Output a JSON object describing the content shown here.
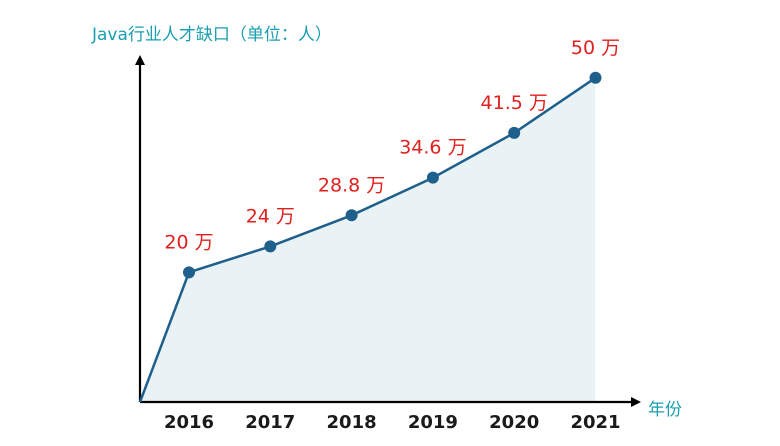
{
  "chart_data": {
    "type": "area",
    "ylabel": "Java行业人才缺口（单位：人）",
    "xlabel": "年份",
    "categories": [
      "2016",
      "2017",
      "2018",
      "2019",
      "2020",
      "2021"
    ],
    "values": [
      20,
      24,
      28.8,
      34.6,
      41.5,
      50
    ],
    "value_unit": "万",
    "data_labels": [
      "20 万",
      "24 万",
      "28.8 万",
      "34.6 万",
      "41.5 万",
      "50 万"
    ],
    "ylim": [
      0,
      62
    ],
    "grid": false,
    "legend": "none",
    "colors": {
      "line": "#1f5f8b",
      "marker": "#1f5f8b",
      "fill": "#e9f3f5",
      "axis": "#000000",
      "axis_title": "#1a9fb0",
      "data_label": "#e0211d",
      "tick_label": "#1a1a1a"
    }
  }
}
